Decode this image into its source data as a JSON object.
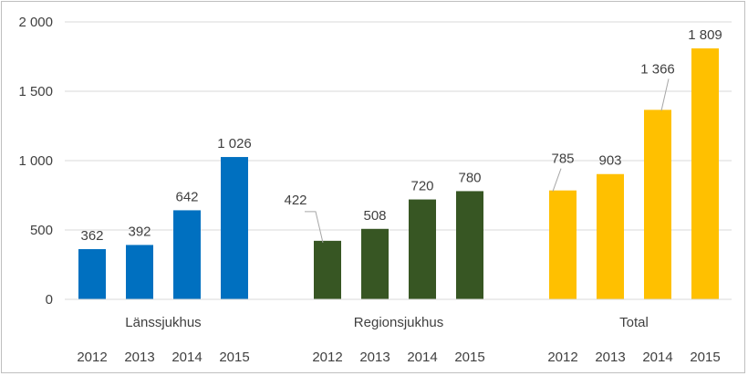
{
  "chart_data": {
    "type": "bar",
    "title": "",
    "xlabel": "",
    "ylabel": "",
    "ylim": [
      0,
      2000
    ],
    "yticks": [
      0,
      500,
      1000,
      1500,
      2000
    ],
    "ytick_labels": [
      "0",
      "500",
      "1 000",
      "1 500",
      "2 000"
    ],
    "grid": true,
    "legend": "none",
    "groups": [
      {
        "name": "Länssjukhus",
        "color": "#0070c0",
        "categories": [
          "2012",
          "2013",
          "2014",
          "2015"
        ],
        "values": [
          362,
          392,
          642,
          1026
        ],
        "labels": [
          "362",
          "392",
          "642",
          "1 026"
        ]
      },
      {
        "name": "Regionsjukhus",
        "color": "#375623",
        "categories": [
          "2012",
          "2013",
          "2014",
          "2015"
        ],
        "values": [
          422,
          508,
          720,
          780
        ],
        "labels": [
          "422",
          "508",
          "720",
          "780"
        ]
      },
      {
        "name": "Total",
        "color": "#ffc000",
        "categories": [
          "2012",
          "2013",
          "2014",
          "2015"
        ],
        "values": [
          785,
          903,
          1366,
          1809
        ],
        "labels": [
          "785",
          "903",
          "1 366",
          "1 809"
        ]
      }
    ]
  }
}
